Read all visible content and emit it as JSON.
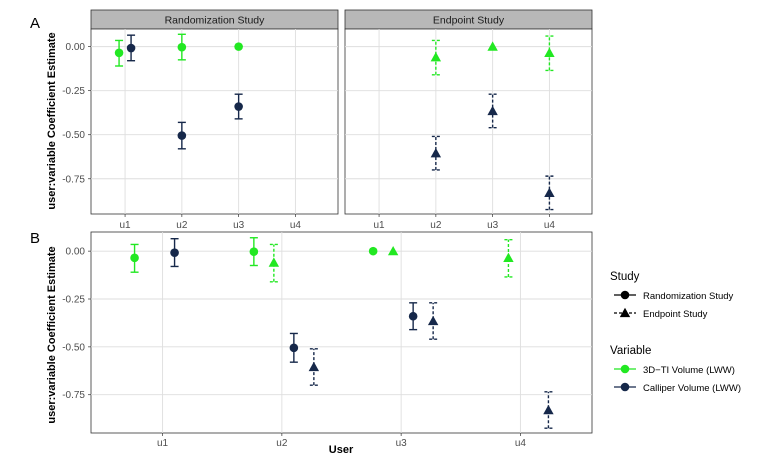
{
  "panel_labels": {
    "a": "A",
    "b": "B"
  },
  "colors": {
    "three_d_ti": "#22e822",
    "calliper": "#16284a"
  },
  "chart_data": [
    {
      "panel": "A",
      "type": "scatter",
      "subtype": "point-with-error-bars, faceted by study",
      "ylabel": "user:variable Coefficient Estimate",
      "xlabel": "",
      "categories": [
        "u1",
        "u2",
        "u3",
        "u4"
      ],
      "y_ticks": [
        "0.00",
        "-0.25",
        "-0.50",
        "-0.75"
      ],
      "ylim": [
        -0.95,
        0.1
      ],
      "facets": [
        {
          "title": "Randomization Study",
          "study": "randomization",
          "points": [
            {
              "user": "u1",
              "variable": "3D-TI Volume (LWW)",
              "y": -0.035,
              "lo": -0.11,
              "hi": 0.035
            },
            {
              "user": "u1",
              "variable": "Calliper Volume (LWW)",
              "y": -0.008,
              "lo": -0.08,
              "hi": 0.065
            },
            {
              "user": "u2",
              "variable": "3D-TI Volume (LWW)",
              "y": -0.003,
              "lo": -0.075,
              "hi": 0.07
            },
            {
              "user": "u2",
              "variable": "Calliper Volume (LWW)",
              "y": -0.505,
              "lo": -0.58,
              "hi": -0.43
            },
            {
              "user": "u3",
              "variable": "3D-TI Volume (LWW)",
              "y": 0.0,
              "lo": 0.0,
              "hi": 0.0
            },
            {
              "user": "u3",
              "variable": "Calliper Volume (LWW)",
              "y": -0.34,
              "lo": -0.41,
              "hi": -0.27
            }
          ]
        },
        {
          "title": "Endpoint Study",
          "study": "endpoint",
          "points": [
            {
              "user": "u2",
              "variable": "3D-TI Volume (LWW)",
              "y": -0.06,
              "lo": -0.16,
              "hi": 0.035
            },
            {
              "user": "u2",
              "variable": "Calliper Volume (LWW)",
              "y": -0.605,
              "lo": -0.7,
              "hi": -0.51
            },
            {
              "user": "u3",
              "variable": "3D-TI Volume (LWW)",
              "y": 0.0,
              "lo": 0.0,
              "hi": 0.0
            },
            {
              "user": "u3",
              "variable": "Calliper Volume (LWW)",
              "y": -0.365,
              "lo": -0.46,
              "hi": -0.27
            },
            {
              "user": "u4",
              "variable": "3D-TI Volume (LWW)",
              "y": -0.035,
              "lo": -0.135,
              "hi": 0.06
            },
            {
              "user": "u4",
              "variable": "Calliper Volume (LWW)",
              "y": -0.83,
              "lo": -0.925,
              "hi": -0.735
            }
          ]
        }
      ]
    },
    {
      "panel": "B",
      "type": "scatter",
      "subtype": "point-with-error-bars, dodged by study",
      "ylabel": "user:variable Coefficient Estimate",
      "xlabel": "User",
      "categories": [
        "u1",
        "u2",
        "u3",
        "u4"
      ],
      "y_ticks": [
        "0.00",
        "-0.25",
        "-0.50",
        "-0.75"
      ],
      "ylim": [
        -0.95,
        0.1
      ],
      "points": [
        {
          "user": "u1",
          "study": "randomization",
          "variable": "3D-TI Volume (LWW)",
          "y": -0.035,
          "lo": -0.11,
          "hi": 0.035
        },
        {
          "user": "u1",
          "study": "randomization",
          "variable": "Calliper Volume (LWW)",
          "y": -0.008,
          "lo": -0.08,
          "hi": 0.065
        },
        {
          "user": "u2",
          "study": "randomization",
          "variable": "3D-TI Volume (LWW)",
          "y": -0.003,
          "lo": -0.075,
          "hi": 0.07
        },
        {
          "user": "u2",
          "study": "endpoint",
          "variable": "3D-TI Volume (LWW)",
          "y": -0.06,
          "lo": -0.16,
          "hi": 0.035
        },
        {
          "user": "u2",
          "study": "randomization",
          "variable": "Calliper Volume (LWW)",
          "y": -0.505,
          "lo": -0.58,
          "hi": -0.43
        },
        {
          "user": "u2",
          "study": "endpoint",
          "variable": "Calliper Volume (LWW)",
          "y": -0.605,
          "lo": -0.7,
          "hi": -0.51
        },
        {
          "user": "u3",
          "study": "randomization",
          "variable": "3D-TI Volume (LWW)",
          "y": 0.0,
          "lo": 0.0,
          "hi": 0.0
        },
        {
          "user": "u3",
          "study": "endpoint",
          "variable": "3D-TI Volume (LWW)",
          "y": 0.0,
          "lo": 0.0,
          "hi": 0.0
        },
        {
          "user": "u3",
          "study": "randomization",
          "variable": "Calliper Volume (LWW)",
          "y": -0.34,
          "lo": -0.41,
          "hi": -0.27
        },
        {
          "user": "u3",
          "study": "endpoint",
          "variable": "Calliper Volume (LWW)",
          "y": -0.365,
          "lo": -0.46,
          "hi": -0.27
        },
        {
          "user": "u4",
          "study": "endpoint",
          "variable": "3D-TI Volume (LWW)",
          "y": -0.035,
          "lo": -0.135,
          "hi": 0.06
        },
        {
          "user": "u4",
          "study": "endpoint",
          "variable": "Calliper Volume (LWW)",
          "y": -0.83,
          "lo": -0.925,
          "hi": -0.735
        }
      ]
    }
  ],
  "legend": {
    "study_title": "Study",
    "study_items": [
      {
        "key": "randomization",
        "label": "Randomization Study",
        "shape": "circle",
        "line": "solid"
      },
      {
        "key": "endpoint",
        "label": "Endpoint Study",
        "shape": "triangle",
        "line": "dashed"
      }
    ],
    "variable_title": "Variable",
    "variable_items": [
      {
        "key": "3D-TI Volume (LWW)",
        "label": "3D−TI Volume (LWW)",
        "color": "#22e822"
      },
      {
        "key": "Calliper Volume (LWW)",
        "label": "Calliper Volume (LWW)",
        "color": "#16284a"
      }
    ]
  }
}
